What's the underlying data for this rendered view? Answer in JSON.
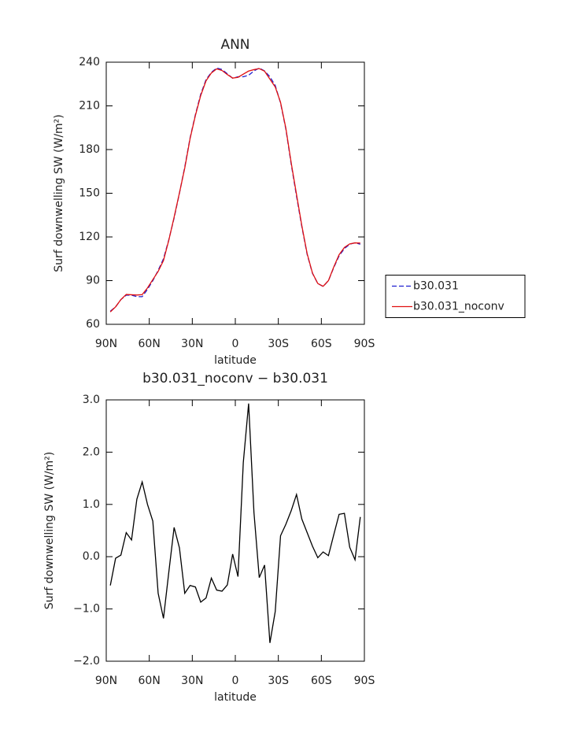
{
  "chart_data": [
    {
      "type": "line",
      "title": "ANN",
      "xlabel": "latitude",
      "ylabel": "Surf downwelling SW (W/m²)",
      "x": [
        87.159,
        83.479,
        79.777,
        76.07,
        72.362,
        68.652,
        64.942,
        61.232,
        57.521,
        53.81,
        50.099,
        46.389,
        42.678,
        38.967,
        35.256,
        31.545,
        27.834,
        24.123,
        20.411,
        16.7,
        12.989,
        9.278,
        5.567,
        1.856,
        -1.856,
        -5.567,
        -9.278,
        -12.989,
        -16.7,
        -20.411,
        -24.123,
        -27.834,
        -31.545,
        -35.256,
        -38.967,
        -42.678,
        -46.389,
        -50.099,
        -53.81,
        -57.521,
        -61.232,
        -64.942,
        -68.652,
        -72.362,
        -76.07,
        -79.777,
        -83.479,
        -87.159
      ],
      "series": [
        {
          "name": "b30.031",
          "color": "#1f1fcf",
          "line_style": "dashed",
          "values": [
            69,
            72,
            77,
            80,
            80,
            79,
            79,
            84,
            90,
            97,
            105,
            118,
            133,
            150,
            168,
            188,
            204,
            218,
            228,
            233,
            236,
            235,
            232,
            229,
            230,
            230,
            231,
            234,
            236,
            234,
            230,
            224,
            212,
            194,
            170,
            148,
            127,
            108,
            95,
            88,
            86,
            90,
            99,
            107,
            112,
            115,
            116,
            115
          ]
        },
        {
          "name": "b30.031_noconv",
          "color": "#e01010",
          "line_style": "solid",
          "values": [
            68.5,
            72.0,
            77.0,
            80.5,
            80.3,
            80.1,
            80.4,
            85.0,
            90.7,
            96.3,
            103.8,
            117.7,
            133.6,
            150.2,
            167.3,
            187.5,
            203.4,
            217.1,
            227.2,
            232.6,
            235.4,
            234.3,
            231.5,
            229.1,
            229.6,
            231.8,
            233.9,
            234.9,
            235.6,
            233.8,
            228.4,
            223.0,
            212.4,
            194.6,
            170.9,
            149.2,
            127.7,
            108.5,
            95.2,
            88.0,
            86.1,
            90.0,
            99.4,
            107.8,
            112.8,
            115.2,
            115.9,
            115.8
          ]
        }
      ],
      "xlim": [
        90,
        -90
      ],
      "xticks": [
        {
          "value": 90,
          "label": "90N"
        },
        {
          "value": 60,
          "label": "60N"
        },
        {
          "value": 30,
          "label": "30N"
        },
        0,
        {
          "value": -30,
          "label": "30S"
        },
        {
          "value": -60,
          "label": "60S"
        },
        {
          "value": -90,
          "label": "90S"
        }
      ],
      "ylim": [
        60,
        240
      ],
      "yticks": [
        60,
        90,
        120,
        150,
        180,
        210,
        240
      ],
      "legend": "outside right"
    },
    {
      "type": "line",
      "title": "b30.031_noconv − b30.031",
      "xlabel": "latitude",
      "ylabel": "Surf downwelling SW (W/m²)",
      "x": [
        87.159,
        83.479,
        79.777,
        76.07,
        72.362,
        68.652,
        64.942,
        61.232,
        57.521,
        53.81,
        50.099,
        46.389,
        42.678,
        38.967,
        35.256,
        31.545,
        27.834,
        24.123,
        20.411,
        16.7,
        12.989,
        9.278,
        5.567,
        1.856,
        -1.856,
        -5.567,
        -9.278,
        -12.989,
        -16.7,
        -20.411,
        -24.123,
        -27.834,
        -31.545,
        -35.256,
        -38.967,
        -42.678,
        -46.389,
        -50.099,
        -53.81,
        -57.521,
        -61.232,
        -64.942,
        -68.652,
        -72.362,
        -76.07,
        -79.777,
        -83.479,
        -87.159
      ],
      "series": [
        {
          "color": "#000000",
          "line_style": "solid",
          "values": [
            -0.55,
            -0.03,
            0.03,
            0.46,
            0.32,
            1.1,
            1.43,
            1.0,
            0.68,
            -0.7,
            -1.18,
            -0.3,
            0.56,
            0.17,
            -0.7,
            -0.55,
            -0.58,
            -0.87,
            -0.79,
            -0.41,
            -0.64,
            -0.66,
            -0.54,
            0.05,
            -0.38,
            1.8,
            2.93,
            0.85,
            -0.4,
            -0.16,
            -1.65,
            -1.05,
            0.4,
            0.62,
            0.88,
            1.19,
            0.72,
            0.46,
            0.2,
            -0.02,
            0.09,
            0.02,
            0.42,
            0.81,
            0.83,
            0.18,
            -0.06,
            0.76
          ]
        }
      ],
      "xlim": [
        90,
        -90
      ],
      "xticks": [
        {
          "value": 90,
          "label": "90N"
        },
        {
          "value": 60,
          "label": "60N"
        },
        {
          "value": 30,
          "label": "30N"
        },
        0,
        {
          "value": -30,
          "label": "30S"
        },
        {
          "value": -60,
          "label": "60S"
        },
        {
          "value": -90,
          "label": "90S"
        }
      ],
      "ylim": [
        -2,
        3
      ],
      "yticks": [
        {
          "value": -2,
          "label": "−2.0"
        },
        {
          "value": -1,
          "label": "−1.0"
        },
        {
          "value": 0,
          "label": "0.0"
        },
        {
          "value": 1,
          "label": "1.0"
        },
        {
          "value": 2,
          "label": "2.0"
        },
        {
          "value": 3,
          "label": "3.0"
        }
      ]
    }
  ]
}
